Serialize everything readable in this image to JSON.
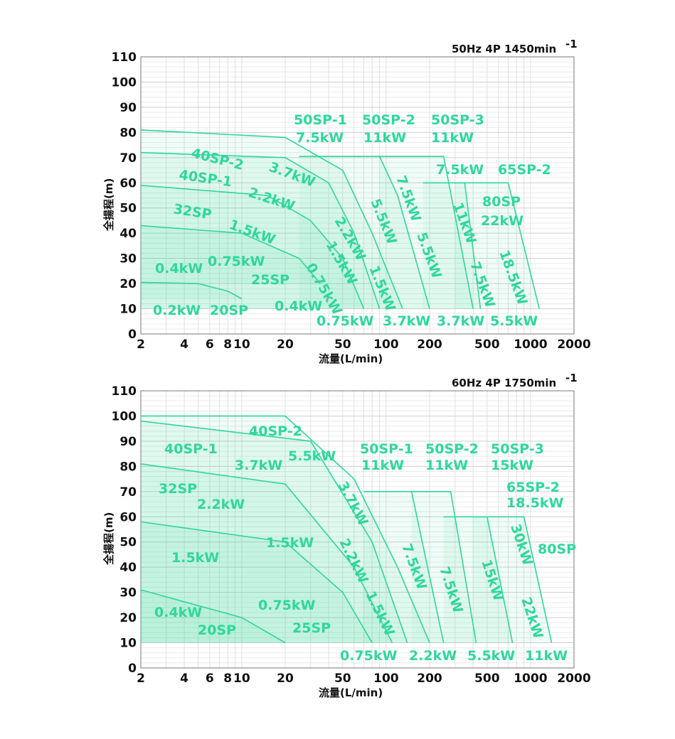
{
  "accent_color": "#2fd79c",
  "chart_data": [
    {
      "type": "area",
      "title": "50Hz 4P 1450min",
      "title_superscript": "-1",
      "xlabel": "流量(L/min)",
      "ylabel": "全揚程(m)",
      "xscale": "log",
      "xlim": [
        2,
        2000
      ],
      "ylim": [
        0,
        110
      ],
      "x_ticks": [
        "2",
        "4",
        "6",
        "8",
        "10",
        "20",
        "50",
        "100",
        "200",
        "500",
        "1000",
        "2000"
      ],
      "y_ticks": [
        "0",
        "10",
        "20",
        "30",
        "40",
        "50",
        "60",
        "70",
        "80",
        "90",
        "100",
        "110"
      ],
      "grid": true,
      "series": [
        {
          "name": "20SP 0.2kW",
          "x": [
            2,
            5,
            8,
            10
          ],
          "y": [
            20.5,
            20,
            17,
            14
          ]
        },
        {
          "name": "25SP 0.4kW",
          "x": [
            2,
            10,
            25,
            35
          ],
          "y": [
            43,
            40,
            30,
            20
          ]
        },
        {
          "name": "32SP 0.75kW",
          "x": [
            2,
            15,
            30,
            50,
            70
          ],
          "y": [
            59,
            55,
            45,
            30,
            10
          ]
        },
        {
          "name": "40SP-1 1.5kW",
          "x": [
            2,
            20,
            40,
            60,
            90
          ],
          "y": [
            72,
            70,
            60,
            40,
            10
          ]
        },
        {
          "name": "40SP-2 3.7kW",
          "x": [
            2,
            20,
            50,
            80,
            130
          ],
          "y": [
            81,
            78,
            65,
            40,
            10
          ]
        },
        {
          "name": "50SP-1 7.5kW",
          "x": [
            25,
            90,
            120,
            200
          ],
          "y": [
            70.5,
            70.5,
            55,
            10
          ]
        },
        {
          "name": "50SP-2 11kW",
          "x": [
            90,
            250,
            400
          ],
          "y": [
            70.5,
            70.5,
            10
          ]
        },
        {
          "name": "50SP-3 / 65SP-2",
          "x": [
            180,
            350,
            450
          ],
          "y": [
            60,
            60,
            10
          ]
        },
        {
          "name": "80SP 22kW",
          "x": [
            300,
            700,
            1150
          ],
          "y": [
            60,
            60,
            10
          ]
        }
      ]
    },
    {
      "type": "area",
      "title": "60Hz 4P 1750min",
      "title_superscript": "-1",
      "xlabel": "流量(L/min)",
      "ylabel": "全揚程(m)",
      "xscale": "log",
      "xlim": [
        2,
        2000
      ],
      "ylim": [
        0,
        110
      ],
      "x_ticks": [
        "2",
        "4",
        "6",
        "8",
        "10",
        "20",
        "50",
        "100",
        "200",
        "500",
        "1000",
        "2000"
      ],
      "y_ticks": [
        "0",
        "10",
        "20",
        "30",
        "40",
        "50",
        "60",
        "70",
        "80",
        "90",
        "100",
        "110"
      ],
      "grid": true,
      "series": [
        {
          "name": "20SP 0.4kW",
          "x": [
            2,
            10,
            20
          ],
          "y": [
            31,
            20,
            10
          ]
        },
        {
          "name": "25SP 0.75kW",
          "x": [
            2,
            20,
            50,
            80
          ],
          "y": [
            58,
            50,
            30,
            10
          ]
        },
        {
          "name": "32SP 1.5kW",
          "x": [
            2,
            20,
            60,
            110
          ],
          "y": [
            81,
            73,
            40,
            10
          ]
        },
        {
          "name": "40SP-1 2.2kW",
          "x": [
            2,
            30,
            80,
            140
          ],
          "y": [
            98,
            90,
            50,
            10
          ]
        },
        {
          "name": "40SP-2 5.5kW",
          "x": [
            2,
            20,
            60,
            120,
            200
          ],
          "y": [
            100,
            100,
            75,
            40,
            10
          ]
        },
        {
          "name": "50SP-1 11kW",
          "x": [
            70,
            150,
            250
          ],
          "y": [
            70,
            70,
            10
          ]
        },
        {
          "name": "50SP-2 11kW",
          "x": [
            150,
            280,
            420
          ],
          "y": [
            70,
            70,
            10
          ]
        },
        {
          "name": "50SP-3 15kW",
          "x": [
            250,
            500,
            750
          ],
          "y": [
            60,
            60,
            10
          ]
        },
        {
          "name": "80SP 30kW",
          "x": [
            400,
            900,
            1400
          ],
          "y": [
            60,
            60,
            10
          ]
        }
      ]
    }
  ],
  "labels": [
    [
      "50SP-1",
      413,
      175
    ],
    [
      "7.5kW",
      416,
      200
    ],
    [
      "50SP-2",
      509,
      175
    ],
    [
      "11kW",
      511,
      200
    ],
    [
      "50SP-3",
      606,
      175
    ],
    [
      "11kW",
      606,
      200
    ],
    [
      "40SP-2",
      268,
      221,
      14
    ],
    [
      "3.7kW",
      377,
      240,
      20
    ],
    [
      "40SP-1",
      251,
      252,
      8
    ],
    [
      "2.2kW",
      348,
      276,
      18
    ],
    [
      "7.5kW",
      613,
      245
    ],
    [
      "65SP-2",
      700,
      245
    ],
    [
      "80SP",
      678,
      290
    ],
    [
      "22kW",
      676,
      317
    ],
    [
      "32SP",
      243,
      300,
      9
    ],
    [
      "1.5kW",
      321,
      321,
      20
    ],
    [
      "0.75kW",
      292,
      374
    ],
    [
      "0.4kW",
      218,
      384
    ],
    [
      "25SP",
      353,
      400
    ],
    [
      "0.2kW",
      215,
      443
    ],
    [
      "20SP",
      295,
      443
    ],
    [
      "0.4kW",
      386,
      437
    ],
    [
      "0.75kW",
      445,
      458
    ],
    [
      "3.7kW",
      538,
      458
    ],
    [
      "3.7kW",
      614,
      458
    ],
    [
      "5.5kW",
      689,
      458
    ],
    [
      "2.2kW",
      470,
      310,
      60
    ],
    [
      "1.5kW",
      458,
      344,
      60
    ],
    [
      "0.75kW",
      430,
      375,
      60
    ],
    [
      "5.5kW",
      521,
      283,
      68
    ],
    [
      "1.5kW",
      519,
      377,
      68
    ],
    [
      "7.5kW",
      557,
      250,
      70
    ],
    [
      "5.5kW",
      586,
      330,
      70
    ],
    [
      "11kW",
      637,
      288,
      70
    ],
    [
      "7.5kW",
      661,
      371,
      70
    ],
    [
      "18.5kW",
      702,
      355,
      70
    ],
    [
      "40SP-2",
      350,
      613
    ],
    [
      "40SP-1",
      231,
      638
    ],
    [
      "5.5kW",
      405,
      648
    ],
    [
      "3.7kW",
      330,
      661
    ],
    [
      "50SP-1",
      506,
      638
    ],
    [
      "11kW",
      508,
      661
    ],
    [
      "50SP-2",
      598,
      638
    ],
    [
      "11kW",
      598,
      661
    ],
    [
      "50SP-3",
      690,
      638
    ],
    [
      "15kW",
      690,
      661
    ],
    [
      "65SP-2",
      712,
      692
    ],
    [
      "18.5kW",
      712,
      714
    ],
    [
      "32SP",
      223,
      694
    ],
    [
      "2.2kW",
      277,
      716
    ],
    [
      "1.5kW",
      374,
      770
    ],
    [
      "1.5kW",
      241,
      791
    ],
    [
      "80SP",
      756,
      779
    ],
    [
      "0.75kW",
      363,
      858
    ],
    [
      "0.4kW",
      217,
      868
    ],
    [
      "20SP",
      278,
      893
    ],
    [
      "25SP",
      411,
      890
    ],
    [
      "0.75kW",
      478,
      929
    ],
    [
      "2.2kW",
      575,
      929
    ],
    [
      "5.5kW",
      657,
      929
    ],
    [
      "11kW",
      738,
      929
    ],
    [
      "3.7kW",
      475,
      682,
      62
    ],
    [
      "2.2kW",
      477,
      762,
      64
    ],
    [
      "1.5kW",
      514,
      836,
      64
    ],
    [
      "7.5kW",
      565,
      768,
      70
    ],
    [
      "7.5kW",
      618,
      800,
      72
    ],
    [
      "15kW",
      677,
      790,
      72
    ],
    [
      "30kW",
      718,
      740,
      72
    ],
    [
      "22kW",
      733,
      843,
      72
    ]
  ]
}
